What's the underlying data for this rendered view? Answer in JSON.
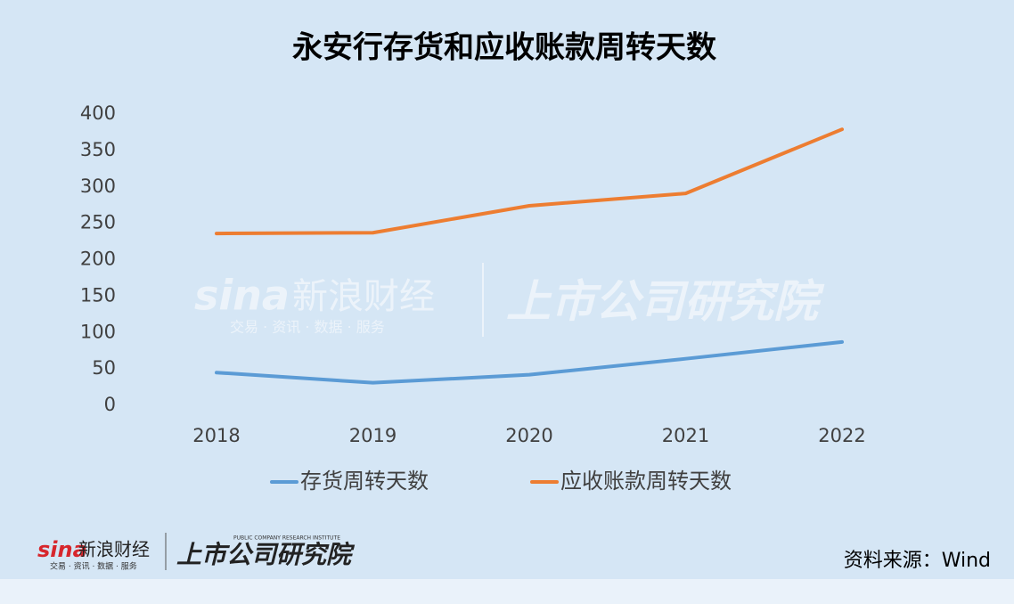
{
  "chart_data": {
    "type": "line",
    "title": "永安行存货和应收账款周转天数",
    "categories": [
      "2018",
      "2019",
      "2020",
      "2021",
      "2022"
    ],
    "series": [
      {
        "name": "存货周转天数",
        "color": "#5b9bd5",
        "values": [
          45,
          31,
          42,
          64,
          87
        ]
      },
      {
        "name": "应收账款周转天数",
        "color": "#ed7d31",
        "values": [
          236,
          237,
          274,
          291,
          379
        ]
      }
    ],
    "ylim": [
      0,
      400
    ],
    "yticks": [
      0,
      50,
      100,
      150,
      200,
      250,
      300,
      350,
      400
    ],
    "grid": false,
    "legend": "bottom"
  },
  "branding": {
    "sina": "sina",
    "sina_name": "新浪财经",
    "sina_slogan": "交易 · 资讯 · 数据 · 服务",
    "institute": "上市公司研究院",
    "institute_en": "PUBLIC COMPANY RESEARCH INSTITUTE"
  },
  "source": "资料来源：Wind"
}
